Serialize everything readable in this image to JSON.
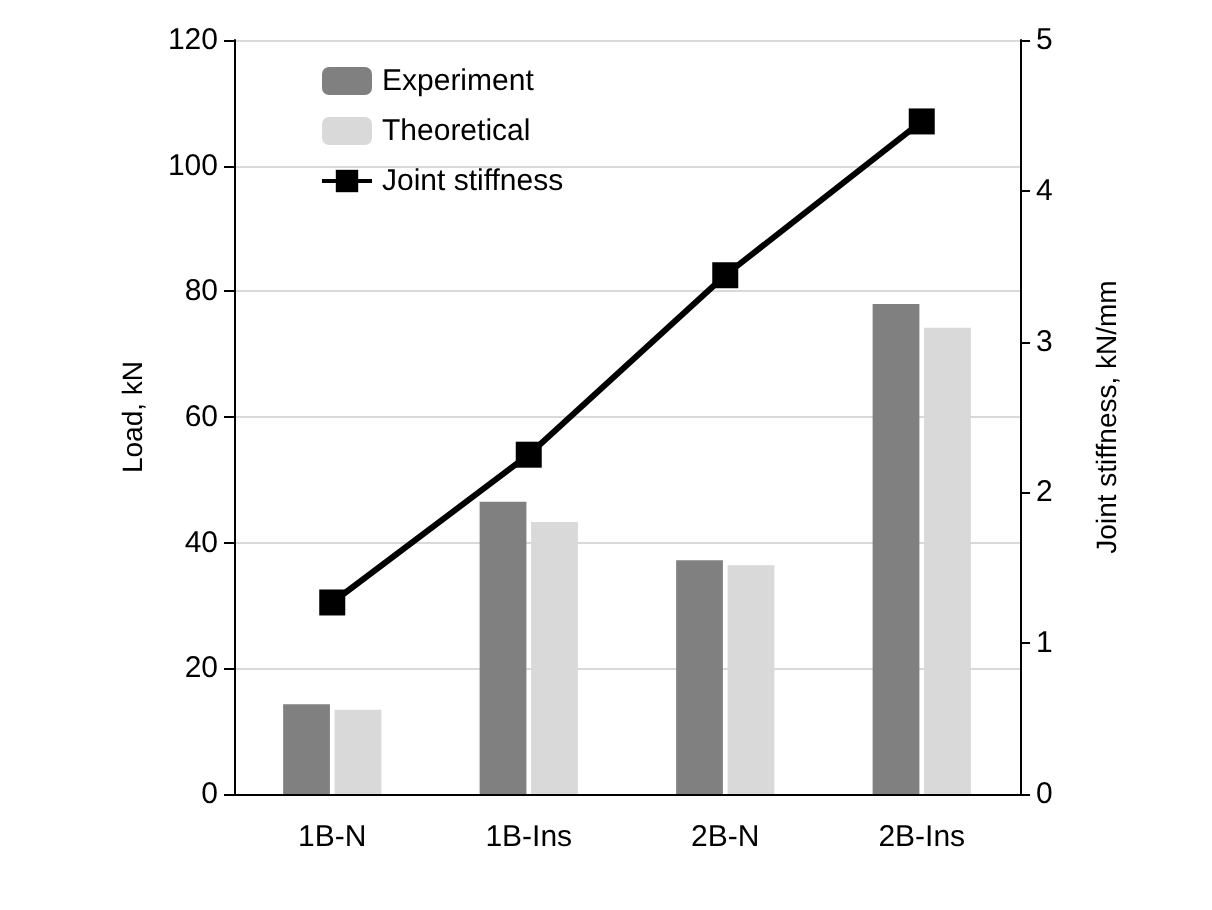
{
  "chart_data": {
    "type": "bar",
    "ylabel": "Load, kN",
    "y2label": "Joint stiffness, kN/mm",
    "categories": [
      "1B-N",
      "1B-Ins",
      "2B-N",
      "2B-Ins"
    ],
    "series": [
      {
        "name": "Experiment",
        "color": "#808080",
        "values": [
          14.3,
          46.5,
          37.2,
          78.0
        ]
      },
      {
        "name": "Theoretical",
        "color": "#d9d9d9",
        "values": [
          13.4,
          43.3,
          36.4,
          74.2
        ]
      },
      {
        "name": "Joint stiffness",
        "type": "line",
        "axis": "y2",
        "color": "#000000",
        "marker": "square",
        "line_style": "solid",
        "values": [
          1.27,
          2.25,
          3.44,
          4.46
        ]
      }
    ],
    "ylim": [
      0,
      120
    ],
    "yticks": [
      0,
      20,
      40,
      60,
      80,
      100,
      120
    ],
    "y2lim": [
      0,
      5
    ],
    "y2ticks": [
      0,
      1,
      2,
      3,
      4,
      5
    ],
    "grid": "y",
    "legend": "top left"
  }
}
